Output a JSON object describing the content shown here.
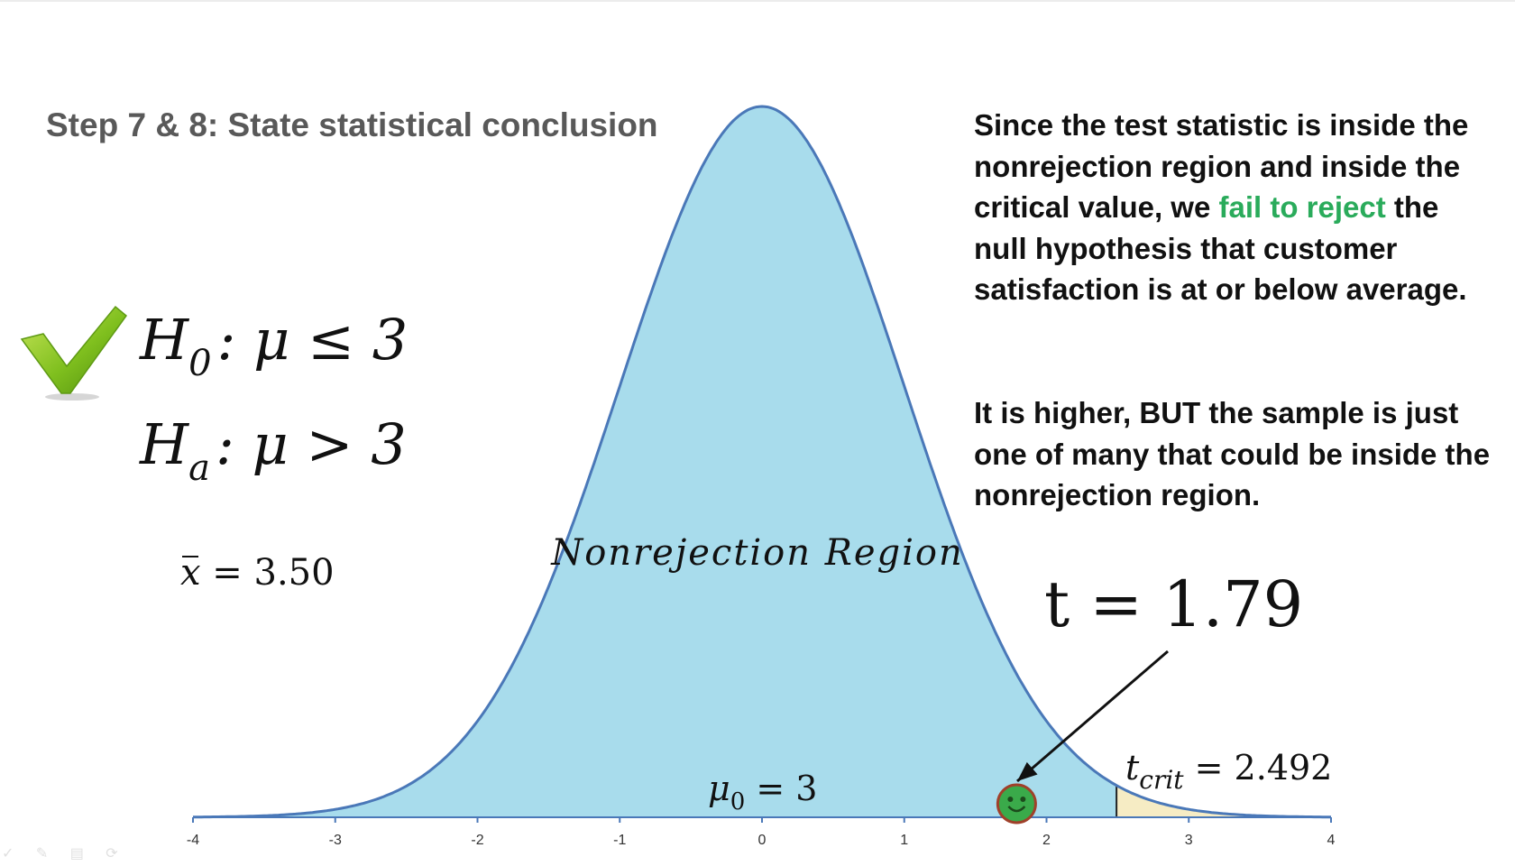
{
  "slide": {
    "title": "Step 7 & 8: State statistical conclusion",
    "hypotheses": {
      "null": {
        "symbol": "H",
        "sub": "0",
        "rest": ": μ ≤ 3"
      },
      "alt": {
        "symbol": "H",
        "sub": "a",
        "rest": ": μ > 3"
      }
    },
    "sample_mean": {
      "symbol": "x",
      "rest": " = 3.50"
    },
    "explanation": {
      "para1_before": "Since the test statistic is inside the nonrejection region and inside the critical value, we ",
      "para1_highlight": "fail to reject",
      "para1_after": " the null hypothesis that customer satisfaction is at or below average.",
      "para2": "It is higher, BUT the sample is just one of many that could be inside the nonrejection region."
    },
    "colors": {
      "highlight": "#2aab5b",
      "nonrejection_fill": "#a8dcec",
      "rejection_fill": "#f6ecc4",
      "curve_stroke": "#4a78b8",
      "smiley": "#3aaa4a"
    },
    "icons": [
      "checkmark-icon",
      "smiley-icon"
    ]
  },
  "chart_data": {
    "type": "area",
    "distribution": "t (bell curve)",
    "xlim": [
      -4,
      4
    ],
    "x_ticks": [
      "-4",
      "-3",
      "-2",
      "-1",
      "0",
      "1",
      "2",
      "3",
      "4"
    ],
    "region_label": "Nonrejection Region",
    "null_mean_label": {
      "base": "μ",
      "sub": "0",
      "rest": " = 3"
    },
    "test_statistic": {
      "value": 1.79,
      "label": "t = 1.79"
    },
    "critical_value": {
      "value": 2.492,
      "base": "t",
      "sub": "crit",
      "rest": " = 2.492"
    },
    "rejection_region": [
      2.492,
      4
    ]
  }
}
